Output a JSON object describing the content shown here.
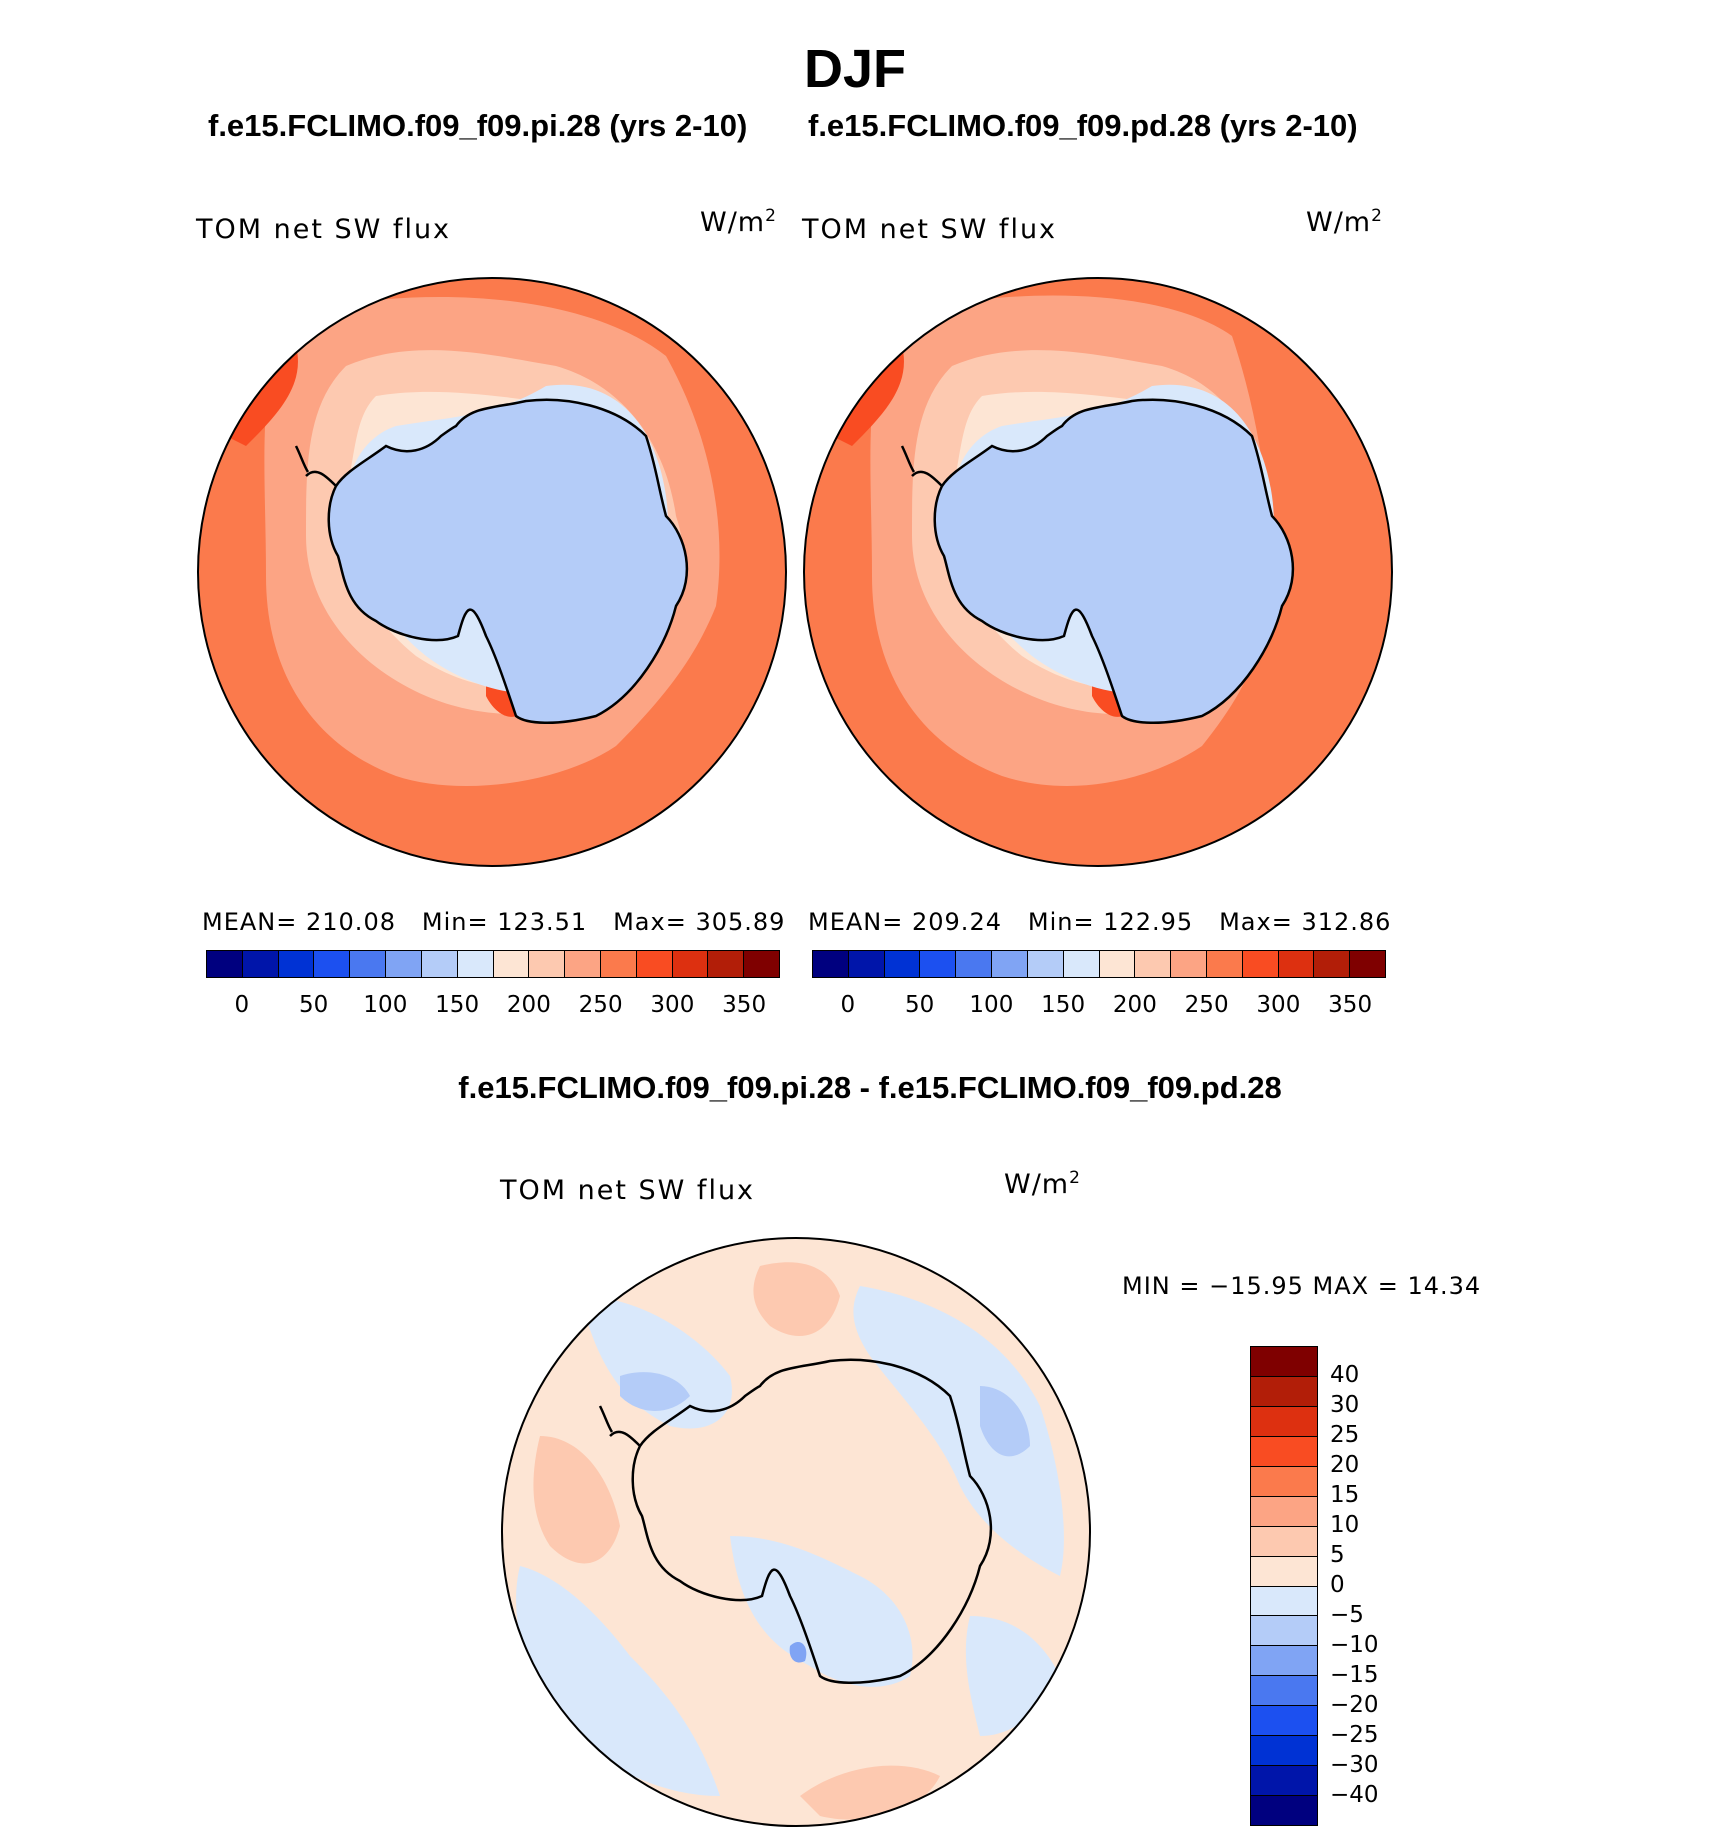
{
  "season": "DJF",
  "case1_title": "f.e15.FCLIMO.f09_f09.pi.28 (yrs 2-10)",
  "case2_title": "f.e15.FCLIMO.f09_f09.pd.28 (yrs 2-10)",
  "diff_title": "f.e15.FCLIMO.f09_f09.pi.28 - f.e15.FCLIMO.f09_f09.pd.28",
  "panels": [
    {
      "variable": "TOM net SW flux",
      "units_base": "W/m",
      "units_exp": "2",
      "stats": {
        "mean_label": "MEAN=",
        "mean": "210.08",
        "min_label": "Min=",
        "min": "123.51",
        "max_label": "Max=",
        "max": "305.89"
      }
    },
    {
      "variable": "TOM net SW flux",
      "units_base": "W/m",
      "units_exp": "2",
      "stats": {
        "mean_label": "MEAN=",
        "mean": "209.24",
        "min_label": "Min=",
        "min": "122.95",
        "max_label": "Max=",
        "max": "312.86"
      }
    },
    {
      "variable": "TOM net SW flux",
      "units_base": "W/m",
      "units_exp": "2",
      "stats_text": "MIN = −15.95 MAX =  14.34"
    }
  ],
  "colorbar_abs": {
    "colors": [
      "#00007f",
      "#0015aa",
      "#0032d4",
      "#1c50f0",
      "#4a78f0",
      "#80a4f4",
      "#b4ccf8",
      "#d9e8fb",
      "#fde5d4",
      "#fdc9b0",
      "#fca484",
      "#fb7a4c",
      "#f94c22",
      "#dd3010",
      "#b21e08",
      "#7f0000"
    ],
    "labels": [
      "0",
      "50",
      "100",
      "150",
      "200",
      "250",
      "300",
      "350"
    ]
  },
  "colorbar_diff": {
    "colors": [
      "#7f0000",
      "#b21e08",
      "#dd3010",
      "#f94c22",
      "#fb7a4c",
      "#fca484",
      "#fdc9b0",
      "#fde5d4",
      "#d9e8fb",
      "#b4ccf8",
      "#80a4f4",
      "#4a78f0",
      "#1c50f0",
      "#0032d4",
      "#0015aa",
      "#00007f"
    ],
    "labels": [
      "40",
      "30",
      "25",
      "20",
      "15",
      "10",
      "5",
      "0",
      "−5",
      "−10",
      "−15",
      "−20",
      "−25",
      "−30",
      "−40"
    ]
  },
  "map_colors": {
    "ocean_warm": "#fb7a4c",
    "ocean_mid": "#fca484",
    "ocean_light": "#fdc9b0",
    "ocean_pale": "#fde5d4",
    "ice": "#b4ccf8",
    "ice_edge": "#d9e8fb",
    "hot": "#f94c22",
    "diff_pos": "#fde5d4",
    "diff_pos2": "#fdc9b0",
    "diff_neg": "#d9e8fb",
    "diff_neg2": "#b4ccf8",
    "diff_neg3": "#80a4f4"
  }
}
